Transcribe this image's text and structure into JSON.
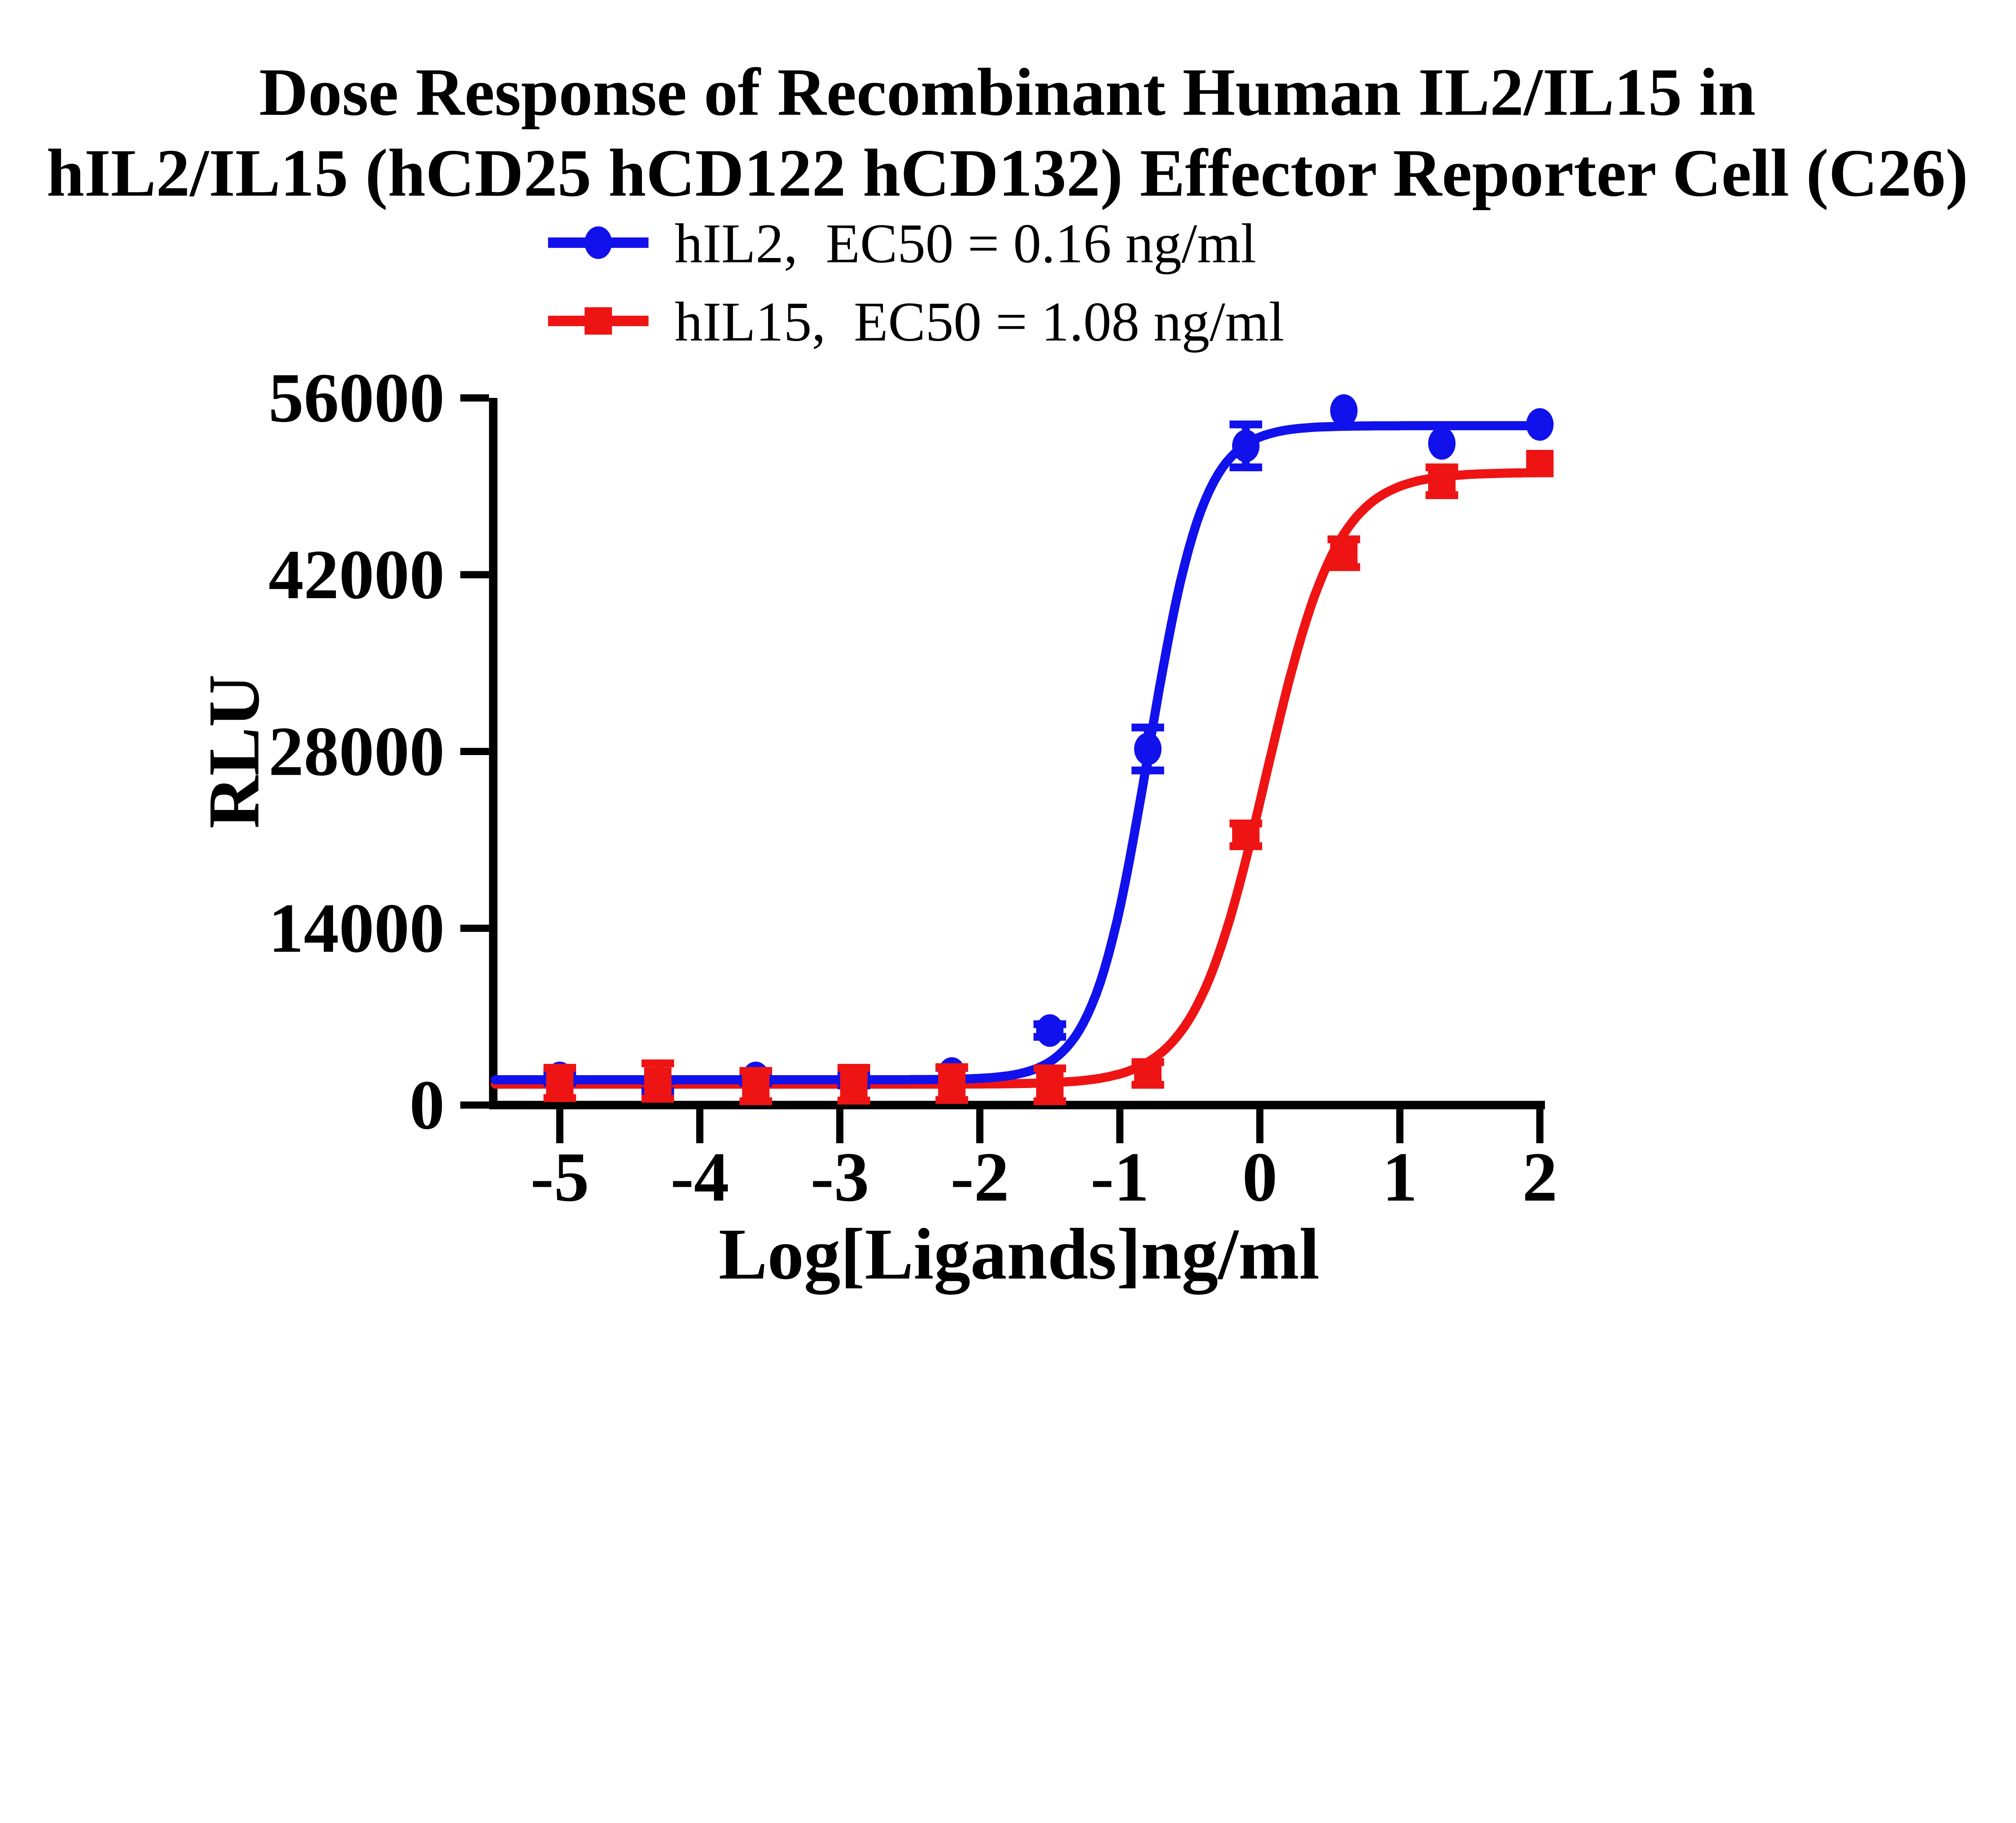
{
  "title": {
    "line1": "Dose Response of Recombinant Human IL2/IL15 in",
    "line2": "hIL2/IL15 (hCD25 hCD122 hCD132) Effector Reporter Cell (C26)"
  },
  "legend": {
    "items": [
      {
        "label": "hIL2,  EC50 = 0.16 ng/ml",
        "color": "#1111EB",
        "marker": "circle"
      },
      {
        "label": "hIL15,  EC50 = 1.08 ng/ml",
        "color": "#EE1414",
        "marker": "square"
      }
    ]
  },
  "axes": {
    "x": {
      "title": "Log[Ligands]ng/ml"
    },
    "y": {
      "title": "RLU"
    }
  },
  "chart_data": {
    "type": "line",
    "title": "Dose Response of Recombinant Human IL2/IL15 in hIL2/IL15 (hCD25 hCD122 hCD132) Effector Reporter Cell (C26)",
    "xlabel": "Log[Ligands]ng/ml",
    "ylabel": "RLU",
    "xlim": [
      -5.48,
      2.04
    ],
    "ylim": [
      0,
      56000
    ],
    "x_ticks": [
      -5,
      -4,
      -3,
      -2,
      -1,
      0,
      1,
      2
    ],
    "y_ticks": [
      0,
      14000,
      28000,
      42000,
      56000
    ],
    "grid": false,
    "legend_position": "top-left",
    "x": [
      -5.0,
      -4.3,
      -3.6,
      -2.9,
      -2.2,
      -1.5,
      -0.8,
      -0.1,
      0.6,
      1.3,
      2.0
    ],
    "series": [
      {
        "name": "hIL2",
        "legend_label": "hIL2,  EC50 = 0.16 ng/ml",
        "ec50_ng_ml": 0.16,
        "color": "#1111EB",
        "marker": "circle",
        "values": [
          2150,
          1500,
          2150,
          1950,
          2500,
          5900,
          28200,
          52200,
          55000,
          52400,
          53900
        ],
        "errors": [
          400,
          400,
          400,
          400,
          450,
          500,
          1700,
          1700,
          0,
          0,
          0
        ],
        "fit": {
          "bottom": 2000,
          "top": 53800,
          "logec50": -0.796,
          "hill": 2.2
        }
      },
      {
        "name": "hIL15",
        "legend_label": "hIL15,  EC50 = 1.08 ng/ml",
        "ec50_ng_ml": 1.08,
        "color": "#EE1414",
        "marker": "square",
        "values": [
          1750,
          1900,
          1500,
          1650,
          1700,
          1600,
          2500,
          21400,
          43700,
          49400,
          50800
        ],
        "errors": [
          1200,
          1400,
          1200,
          1300,
          1300,
          1300,
          900,
          900,
          1100,
          1100,
          0
        ],
        "fit": {
          "bottom": 1650,
          "top": 50100,
          "logec50": 0.04,
          "hill": 1.7
        }
      }
    ]
  }
}
